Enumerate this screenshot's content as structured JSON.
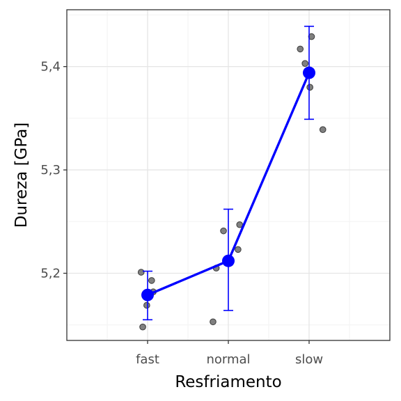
{
  "chart_data": {
    "type": "scatter",
    "xlabel": "Resfriamento",
    "ylabel": "Dureza [GPa]",
    "categories": [
      "fast",
      "normal",
      "slow"
    ],
    "ylim": [
      5.135,
      5.455
    ],
    "y_ticks": [
      5.2,
      5.3,
      5.4
    ],
    "y_tick_labels": [
      "5,2",
      "5,3",
      "5,4"
    ],
    "grid": true,
    "legend": "none",
    "colors": {
      "mean": "#0000ff",
      "points": "#808080",
      "points_stroke": "#3a3a3a",
      "grid_major": "#e5e5e5",
      "grid_minor": "#f2f2f2",
      "panel_border": "#333333"
    },
    "observations": [
      {
        "category": "fast",
        "jitter": -0.08,
        "y": 5.201
      },
      {
        "category": "fast",
        "jitter": 0.05,
        "y": 5.193
      },
      {
        "category": "fast",
        "jitter": 0.07,
        "y": 5.182
      },
      {
        "category": "fast",
        "jitter": -0.01,
        "y": 5.169
      },
      {
        "category": "fast",
        "jitter": -0.06,
        "y": 5.148
      },
      {
        "category": "normal",
        "jitter": -0.06,
        "y": 5.241
      },
      {
        "category": "normal",
        "jitter": 0.14,
        "y": 5.247
      },
      {
        "category": "normal",
        "jitter": 0.12,
        "y": 5.223
      },
      {
        "category": "normal",
        "jitter": -0.15,
        "y": 5.205
      },
      {
        "category": "normal",
        "jitter": -0.19,
        "y": 5.153
      },
      {
        "category": "slow",
        "jitter": -0.11,
        "y": 5.417
      },
      {
        "category": "slow",
        "jitter": 0.03,
        "y": 5.429
      },
      {
        "category": "slow",
        "jitter": -0.05,
        "y": 5.403
      },
      {
        "category": "slow",
        "jitter": 0.01,
        "y": 5.38
      },
      {
        "category": "slow",
        "jitter": 0.17,
        "y": 5.339
      }
    ],
    "series": [
      {
        "values": [
          5.179,
          5.212,
          5.394
        ],
        "error_low": [
          5.155,
          5.164,
          5.349
        ],
        "error_high": [
          5.202,
          5.262,
          5.439
        ]
      }
    ]
  }
}
